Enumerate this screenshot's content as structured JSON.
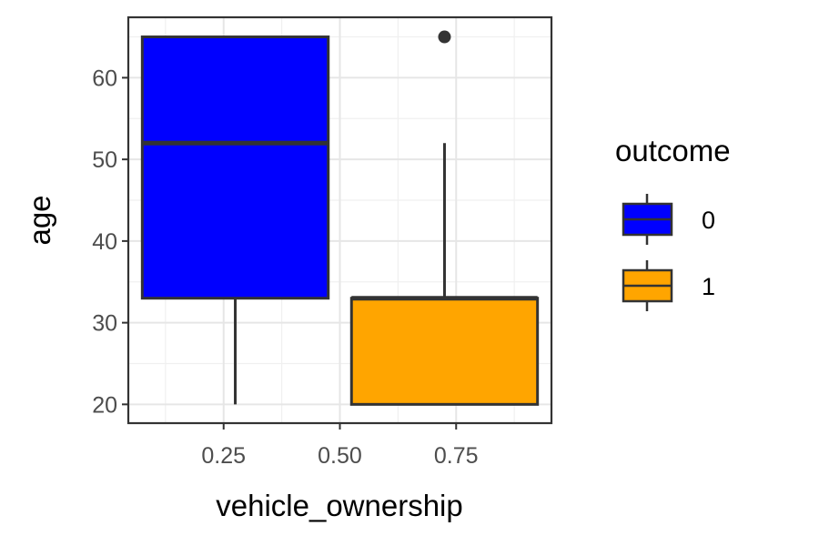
{
  "chart_data": {
    "type": "boxplot",
    "title": "",
    "xlabel": "vehicle_ownership",
    "ylabel": "age",
    "x_ticks": [
      0.25,
      0.5,
      0.75
    ],
    "x_tick_labels": [
      "0.25",
      "0.50",
      "0.75"
    ],
    "y_ticks": [
      20,
      30,
      40,
      50,
      60
    ],
    "y_tick_labels": [
      "20",
      "30",
      "40",
      "50",
      "60"
    ],
    "xlim": [
      0.045,
      0.955
    ],
    "ylim": [
      17.7,
      67.4
    ],
    "grid": true,
    "legend": {
      "title": "outcome",
      "position": "right",
      "entries": [
        {
          "label": "0",
          "color": "#0000ff"
        },
        {
          "label": "1",
          "color": "#ffa500"
        }
      ]
    },
    "series": [
      {
        "name": "0",
        "x": 0.275,
        "width": 0.4,
        "whisker_low": 20,
        "q1": 33,
        "median": 52,
        "q3": 65,
        "whisker_high": 65,
        "outliers": [],
        "color": "#0000ff"
      },
      {
        "name": "1",
        "x": 0.725,
        "width": 0.4,
        "whisker_low": 20,
        "q1": 20,
        "median": 33,
        "q3": 33,
        "whisker_high": 52,
        "outliers": [
          65
        ],
        "color": "#ffa500"
      }
    ]
  }
}
